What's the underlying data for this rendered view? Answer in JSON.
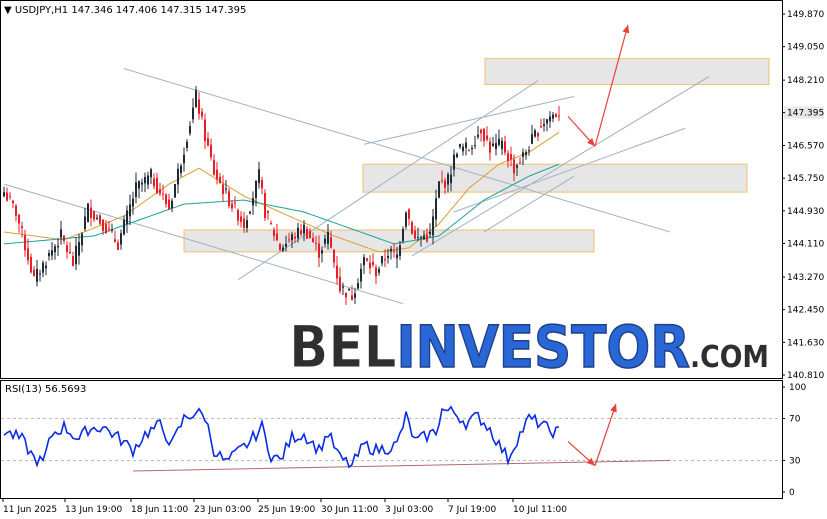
{
  "colors": {
    "candle_up": "#1e2a36",
    "candle_down": "#e81e25",
    "ma_fast": "#d9a032",
    "ma_slow": "#1aa39a",
    "channel": "#9fb0c2",
    "zone_fill": "#e6e6e6",
    "zone_border": "#f0bf73",
    "arrow": "#e8423d",
    "rsi": "#0a2be6",
    "rsi_trend": "#b06a6a",
    "price_box": "#e8e8e8",
    "watermark_dark": "#2f2f2f",
    "watermark_blue": "#2a67d6"
  },
  "header": {
    "symbol": "USDJPY,H1",
    "open": "147.346",
    "high": "147.406",
    "low": "147.315",
    "close": "147.395"
  },
  "watermark": {
    "part1": "BEL",
    "part2": "INVESTOR",
    "part3": ".COM"
  },
  "rsi_label": "RSI(13) 56.5693",
  "chart_data": [
    {
      "type": "candlestick",
      "title": "USDJPY,H1",
      "ylim": [
        140.81,
        149.87
      ],
      "y_ticks": [
        "149.870",
        "149.050",
        "148.210",
        "147.395",
        "146.570",
        "145.750",
        "144.930",
        "144.110",
        "143.270",
        "142.450",
        "141.630",
        "140.810"
      ],
      "last_price": "147.395",
      "x_ticks": [
        "11 Jun 2025",
        "13 Jun 19:00",
        "18 Jun 11:00",
        "23 Jun 03:00",
        "25 Jun 19:00",
        "30 Jun 11:00",
        "3 Jul 03:00",
        "7 Jul 19:00",
        "10 Jul 11:00"
      ],
      "anchors": [
        [
          0,
          145.4
        ],
        [
          4,
          144.9
        ],
        [
          10,
          143.2
        ],
        [
          14,
          143.7
        ],
        [
          19,
          144.3
        ],
        [
          23,
          143.6
        ],
        [
          28,
          145.0
        ],
        [
          33,
          144.6
        ],
        [
          38,
          144.1
        ],
        [
          44,
          145.5
        ],
        [
          49,
          145.8
        ],
        [
          55,
          145.0
        ],
        [
          60,
          146.5
        ],
        [
          64,
          147.8
        ],
        [
          67,
          146.8
        ],
        [
          70,
          145.9
        ],
        [
          75,
          145.2
        ],
        [
          80,
          144.6
        ],
        [
          85,
          145.8
        ],
        [
          87,
          144.9
        ],
        [
          92,
          144.0
        ],
        [
          95,
          144.2
        ],
        [
          100,
          144.5
        ],
        [
          105,
          143.9
        ],
        [
          108,
          144.3
        ],
        [
          112,
          143.0
        ],
        [
          116,
          142.8
        ],
        [
          120,
          143.7
        ],
        [
          124,
          143.4
        ],
        [
          128,
          143.9
        ],
        [
          131,
          143.8
        ],
        [
          134,
          145.0
        ],
        [
          137,
          144.2
        ],
        [
          140,
          144.3
        ],
        [
          142,
          144.3
        ],
        [
          145,
          145.6
        ],
        [
          148,
          145.7
        ],
        [
          151,
          146.5
        ],
        [
          155,
          146.5
        ],
        [
          159,
          147.0
        ],
        [
          162,
          146.5
        ],
        [
          166,
          146.6
        ],
        [
          170,
          146.0
        ],
        [
          173,
          146.3
        ],
        [
          176,
          146.7
        ],
        [
          179,
          147.1
        ],
        [
          182,
          147.3
        ],
        [
          185,
          147.4
        ]
      ],
      "ma_fast_anchors": [
        [
          0,
          144.4
        ],
        [
          20,
          144.2
        ],
        [
          40,
          144.8
        ],
        [
          55,
          145.6
        ],
        [
          65,
          146.0
        ],
        [
          80,
          145.3
        ],
        [
          95,
          144.8
        ],
        [
          110,
          144.3
        ],
        [
          125,
          143.9
        ],
        [
          135,
          144.0
        ],
        [
          145,
          144.6
        ],
        [
          155,
          145.5
        ],
        [
          165,
          146.1
        ],
        [
          175,
          146.4
        ],
        [
          185,
          146.9
        ]
      ],
      "ma_slow_anchors": [
        [
          0,
          144.1
        ],
        [
          30,
          144.3
        ],
        [
          60,
          145.1
        ],
        [
          80,
          145.2
        ],
        [
          100,
          144.9
        ],
        [
          115,
          144.5
        ],
        [
          130,
          144.1
        ],
        [
          145,
          144.3
        ],
        [
          160,
          145.2
        ],
        [
          175,
          145.8
        ],
        [
          185,
          146.1
        ]
      ],
      "zones": [
        [
          148.1,
          148.75
        ],
        [
          145.4,
          146.1
        ],
        [
          143.9,
          144.45
        ]
      ],
      "channel_lines": [
        [
          [
            0,
            145.6
          ],
          [
            133,
            142.6
          ]
        ],
        [
          [
            40,
            148.5
          ],
          [
            222,
            144.4
          ]
        ],
        [
          [
            78,
            143.2
          ],
          [
            178,
            148.2
          ]
        ],
        [
          [
            120,
            146.6
          ],
          [
            190,
            147.8
          ]
        ],
        [
          [
            136,
            143.8
          ],
          [
            235,
            148.3
          ]
        ],
        [
          [
            150,
            144.9
          ],
          [
            227,
            147.0
          ]
        ],
        [
          [
            160,
            144.4
          ],
          [
            190,
            145.8
          ]
        ]
      ],
      "arrows": [
        [
          [
            188,
            147.3
          ],
          [
            197,
            146.55
          ]
        ],
        [
          [
            197,
            146.55
          ],
          [
            208,
            149.6
          ]
        ]
      ]
    },
    {
      "type": "line",
      "title": "RSI(13) 56.5693",
      "ylim": [
        0,
        100
      ],
      "y_ticks": [
        "100",
        "70",
        "30",
        "0"
      ],
      "levels": [
        70,
        30
      ],
      "anchors": [
        [
          0,
          58
        ],
        [
          6,
          50
        ],
        [
          10,
          32
        ],
        [
          13,
          28
        ],
        [
          16,
          55
        ],
        [
          20,
          62
        ],
        [
          25,
          50
        ],
        [
          28,
          60
        ],
        [
          33,
          62
        ],
        [
          38,
          52
        ],
        [
          43,
          40
        ],
        [
          47,
          55
        ],
        [
          52,
          64
        ],
        [
          56,
          45
        ],
        [
          60,
          70
        ],
        [
          64,
          76
        ],
        [
          67,
          72
        ],
        [
          70,
          40
        ],
        [
          74,
          28
        ],
        [
          78,
          38
        ],
        [
          82,
          48
        ],
        [
          86,
          62
        ],
        [
          89,
          35
        ],
        [
          92,
          30
        ],
        [
          96,
          52
        ],
        [
          100,
          55
        ],
        [
          105,
          40
        ],
        [
          108,
          56
        ],
        [
          112,
          32
        ],
        [
          116,
          25
        ],
        [
          120,
          45
        ],
        [
          124,
          40
        ],
        [
          128,
          42
        ],
        [
          131,
          45
        ],
        [
          134,
          72
        ],
        [
          137,
          48
        ],
        [
          140,
          52
        ],
        [
          144,
          58
        ],
        [
          146,
          78
        ],
        [
          150,
          76
        ],
        [
          154,
          66
        ],
        [
          158,
          72
        ],
        [
          162,
          60
        ],
        [
          165,
          45
        ],
        [
          168,
          32
        ],
        [
          171,
          50
        ],
        [
          175,
          70
        ],
        [
          179,
          65
        ],
        [
          182,
          58
        ],
        [
          185,
          57
        ]
      ],
      "trendline": [
        [
          43,
          20
        ],
        [
          222,
          30
        ]
      ],
      "arrows": [
        [
          [
            188,
            48
          ],
          [
            197,
            25
          ]
        ],
        [
          [
            197,
            25
          ],
          [
            204,
            84
          ]
        ]
      ]
    }
  ]
}
